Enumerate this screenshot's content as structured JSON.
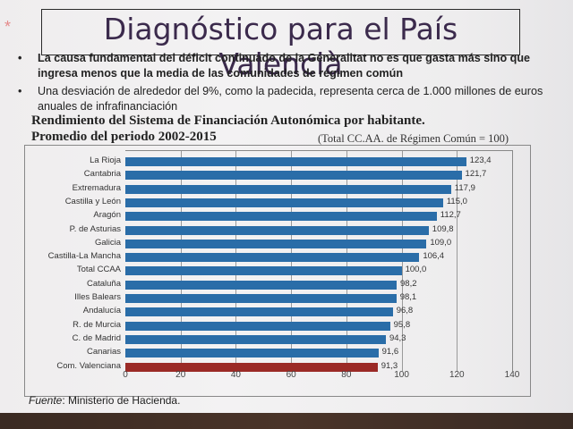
{
  "slide": {
    "title": "Diagnóstico para el País Valencià",
    "star": "*",
    "bullets": [
      {
        "text": "La causa fundamental del déficit continuado de la Generalitat no es que gasta más sino que ingresa menos que la media de las comunidades de régimen común",
        "bold": true
      },
      {
        "text": "Una desviación de  alrededor del 9%, como la padecida, representa cerca de 1.000 millones de euros anuales de infrafinanciación",
        "bold": false
      }
    ],
    "bullet_char": "•",
    "source_label": "Fuente",
    "source_text": ": Ministerio de Hacienda."
  },
  "chart_data": {
    "type": "bar",
    "orientation": "horizontal",
    "title": "Rendimiento del Sistema de Financiación Autonómica por habitante.",
    "subtitle": "Promedio del periodo 2002-2015",
    "note": "(Total CC.AA. de Régimen Común = 100)",
    "categories": [
      "La Rioja",
      "Cantabria",
      "Extremadura",
      "Castilla y León",
      "Aragón",
      "P. de Asturias",
      "Galicia",
      "Castilla-La Mancha",
      "Total CCAA",
      "Cataluña",
      "Illes Balears",
      "Andalucía",
      "R. de Murcia",
      "C. de Madrid",
      "Canarias",
      "Com. Valenciana"
    ],
    "values": [
      123.4,
      121.7,
      117.9,
      115.0,
      112.7,
      109.8,
      109.0,
      106.4,
      100.0,
      98.2,
      98.1,
      96.8,
      95.8,
      94.3,
      91.6,
      91.3
    ],
    "value_labels": [
      "123,4",
      "121,7",
      "117,9",
      "115,0",
      "112,7",
      "109,8",
      "109,0",
      "106,4",
      "100,0",
      "98,2",
      "98,1",
      "96,8",
      "95,8",
      "94,3",
      "91,6",
      "91,3"
    ],
    "highlight": "Com. Valenciana",
    "colors": {
      "bar": "#2a6da8",
      "highlight": "#9b2a26"
    },
    "xlabel": "",
    "ylabel": "",
    "xlim": [
      0,
      140
    ],
    "xticks": [
      "0",
      "20",
      "40",
      "60",
      "80",
      "100",
      "120",
      "140"
    ],
    "grid": true,
    "legend": null
  }
}
